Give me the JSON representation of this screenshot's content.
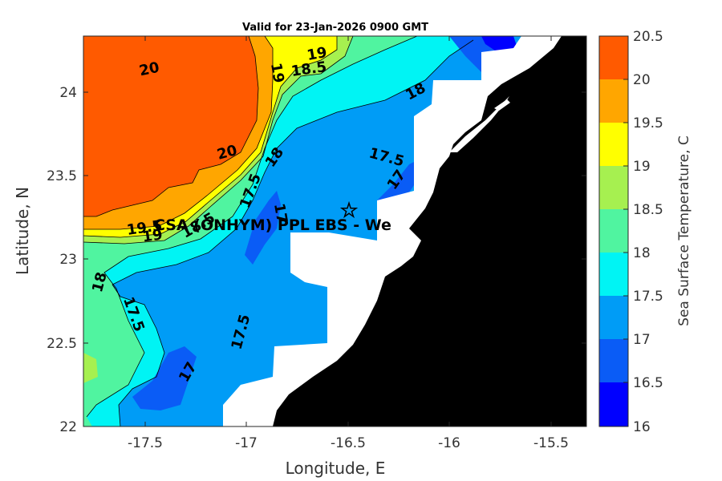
{
  "title": "Valid for 23-Jan-2026 0900 GMT",
  "xlabel": "Longitude, E",
  "ylabel": "Latitude, N",
  "colorbar_label": "Sea Surface Temperature, C",
  "x_ticks": [
    "-17.5",
    "-17",
    "-16.5",
    "-16",
    "-15.5"
  ],
  "y_ticks": [
    "24",
    "23.5",
    "23",
    "22.5",
    "22"
  ],
  "colorbar_ticks": [
    "20.5",
    "20",
    "19.5",
    "19",
    "18.5",
    "18",
    "17.5",
    "17",
    "16.5",
    "16"
  ],
  "station_label": "CSA (ONHYM) PPL EBS  - We",
  "station_marker": "☆",
  "contour_labels": [
    "20",
    "19",
    "18.5",
    "19",
    "18",
    "20",
    "18",
    "17.5",
    "17.5",
    "17",
    "19.5",
    "19",
    "18.5",
    "17",
    "18",
    "17.5",
    "17.5",
    "17"
  ],
  "colors": {
    "band_16_16_5": "#0000ff",
    "band_16_5_17": "#0a5cf6",
    "band_17_17_5": "#009cf6",
    "band_17_5_18": "#00f4f4",
    "band_18_18_5": "#50f4a0",
    "band_18_5_19": "#a6f050",
    "band_19_19_5": "#ffff00",
    "band_19_5_20": "#ffa600",
    "band_20_20_5": "#ff5a00",
    "land": "#000000",
    "no_data": "#ffffff"
  },
  "chart_data": {
    "type": "heatmap",
    "title": "Valid for 23-Jan-2026 0900 GMT",
    "xlabel": "Longitude, E",
    "ylabel": "Latitude, N",
    "xlim": [
      -17.8,
      -15.35
    ],
    "ylim": [
      22.0,
      24.35
    ],
    "colorbar": {
      "label": "Sea Surface Temperature, C",
      "range": [
        16,
        20.5
      ],
      "levels": [
        16,
        16.5,
        17,
        17.5,
        18,
        18.5,
        19,
        19.5,
        20,
        20.5
      ]
    },
    "contour_levels": [
      17,
      17.5,
      18,
      18.5,
      19,
      19.5,
      20
    ],
    "station": {
      "name": "CSA (ONHYM) PPL EBS  - We",
      "lon": -16.48,
      "lat": 23.29
    }
  }
}
